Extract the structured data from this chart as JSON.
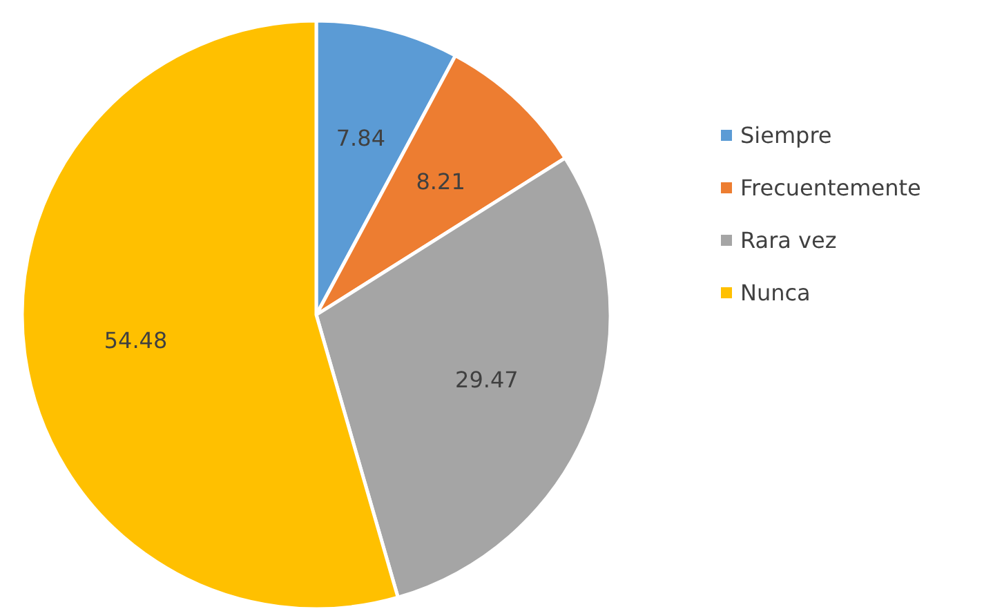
{
  "chart_data": {
    "type": "pie",
    "categories": [
      "Siempre",
      "Frecuentemente",
      "Rara vez",
      "Nunca"
    ],
    "values": [
      7.84,
      8.21,
      29.47,
      54.48
    ],
    "colors": [
      "#5b9bd5",
      "#ed7d31",
      "#a5a5a5",
      "#ffc000"
    ],
    "data_labels": true,
    "legend": "right"
  }
}
